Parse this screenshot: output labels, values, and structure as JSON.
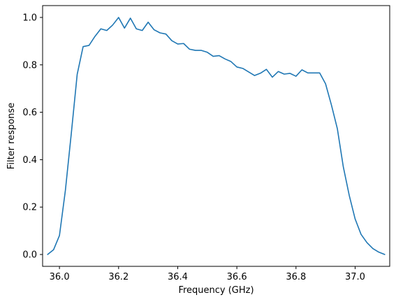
{
  "chart_data": {
    "type": "line",
    "title": "",
    "xlabel": "Frequency (GHz)",
    "ylabel": "Filter response",
    "xlim": [
      35.943,
      37.117
    ],
    "ylim": [
      -0.05,
      1.05
    ],
    "xticks": [
      36.0,
      36.2,
      36.4,
      36.6,
      36.8,
      37.0
    ],
    "xtick_labels": [
      "36.0",
      "36.2",
      "36.4",
      "36.6",
      "36.8",
      "37.0"
    ],
    "yticks": [
      0.0,
      0.2,
      0.4,
      0.6,
      0.8,
      1.0
    ],
    "ytick_labels": [
      "0.0",
      "0.2",
      "0.4",
      "0.6",
      "0.8",
      "1.0"
    ],
    "grid": false,
    "legend": "none",
    "colors": {
      "line": "#1f77b4",
      "axes": "#000000",
      "background": "#ffffff"
    },
    "series": [
      {
        "x": [
          35.96,
          35.98,
          36.0,
          36.02,
          36.04,
          36.06,
          36.08,
          36.1,
          36.12,
          36.14,
          36.16,
          36.18,
          36.2,
          36.22,
          36.24,
          36.26,
          36.28,
          36.3,
          36.32,
          36.34,
          36.36,
          36.38,
          36.4,
          36.42,
          36.44,
          36.46,
          36.48,
          36.5,
          36.52,
          36.54,
          36.56,
          36.58,
          36.6,
          36.62,
          36.64,
          36.66,
          36.68,
          36.7,
          36.72,
          36.74,
          36.76,
          36.78,
          36.8,
          36.82,
          36.84,
          36.86,
          36.88,
          36.9,
          36.92,
          36.94,
          36.96,
          36.98,
          37.0,
          37.02,
          37.04,
          37.06,
          37.08,
          37.1
        ],
        "y": [
          0.0,
          0.02,
          0.08,
          0.27,
          0.51,
          0.76,
          0.877,
          0.882,
          0.92,
          0.952,
          0.945,
          0.968,
          1.0,
          0.955,
          0.997,
          0.952,
          0.945,
          0.98,
          0.948,
          0.935,
          0.93,
          0.902,
          0.888,
          0.89,
          0.866,
          0.861,
          0.861,
          0.853,
          0.836,
          0.839,
          0.825,
          0.814,
          0.791,
          0.785,
          0.77,
          0.755,
          0.765,
          0.781,
          0.748,
          0.772,
          0.761,
          0.764,
          0.752,
          0.779,
          0.766,
          0.766,
          0.766,
          0.72,
          0.63,
          0.53,
          0.37,
          0.25,
          0.15,
          0.085,
          0.05,
          0.025,
          0.01,
          0.0
        ]
      }
    ]
  }
}
